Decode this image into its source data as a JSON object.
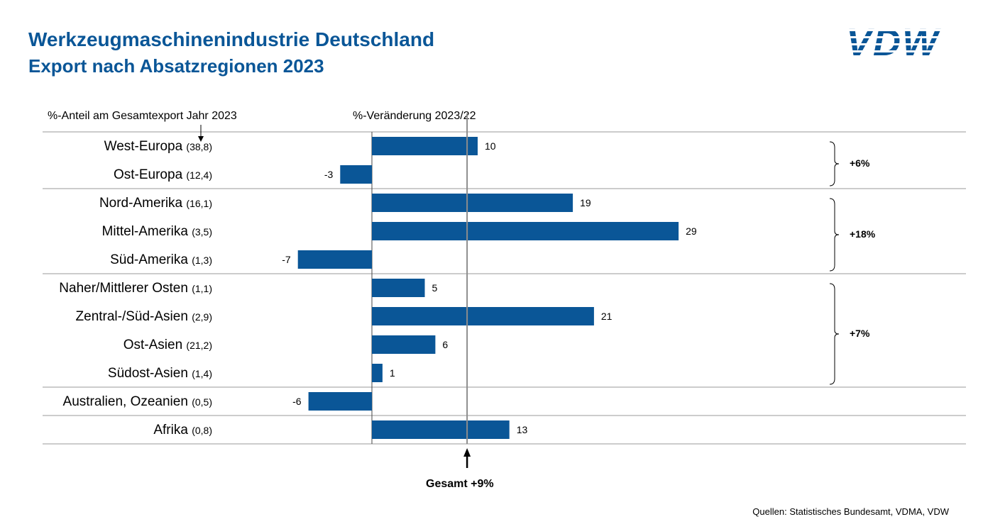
{
  "header": {
    "title": "Werkzeugmaschinenindustrie Deutschland",
    "subtitle": "Export nach Absatzregionen 2023",
    "logo_text": "VDW"
  },
  "column_headers": {
    "share": "%-Anteil am Gesamtexport Jahr 2023",
    "change": "%-Veränderung 2023/22"
  },
  "total_label": "Gesamt +9%",
  "source": "Quellen: Statistisches Bundesamt, VDMA, VDW",
  "colors": {
    "bar": "#0a5697",
    "heading": "#0a5697"
  },
  "chart_data": {
    "type": "bar",
    "orientation": "horizontal",
    "categories": [
      "West-Europa",
      "Ost-Europa",
      "Nord-Amerika",
      "Mittel-Amerika",
      "Süd-Amerika",
      "Naher/Mittlerer Osten",
      "Zentral-/Süd-Asien",
      "Ost-Asien",
      "Südost-Asien",
      "Australien, Ozeanien",
      "Afrika"
    ],
    "shares": [
      "(38,8)",
      "(12,4)",
      "(16,1)",
      "(3,5)",
      "(1,3)",
      "(1,1)",
      "(2,9)",
      "(21,2)",
      "(1,4)",
      "(0,5)",
      "(0,8)"
    ],
    "values": [
      10,
      -3,
      19,
      29,
      -7,
      5,
      21,
      6,
      1,
      -6,
      13
    ],
    "value_labels": [
      "10",
      "-3",
      "19",
      "29",
      "-7",
      "5",
      "21",
      "6",
      "1",
      "-6",
      "13"
    ],
    "reference_line": {
      "value": 9,
      "label": "Gesamt +9%"
    },
    "groups": [
      {
        "rows": [
          0,
          1
        ],
        "label": "+6%"
      },
      {
        "rows": [
          2,
          3,
          4
        ],
        "label": "+18%"
      },
      {
        "rows": [
          5,
          6,
          7,
          8
        ],
        "label": "+7%"
      },
      {
        "rows": [
          9
        ],
        "label": ""
      },
      {
        "rows": [
          10
        ],
        "label": ""
      }
    ],
    "xlabel": "%-Veränderung 2023/22",
    "ylabel": "%-Anteil am Gesamtexport Jahr 2023",
    "grid": false
  }
}
